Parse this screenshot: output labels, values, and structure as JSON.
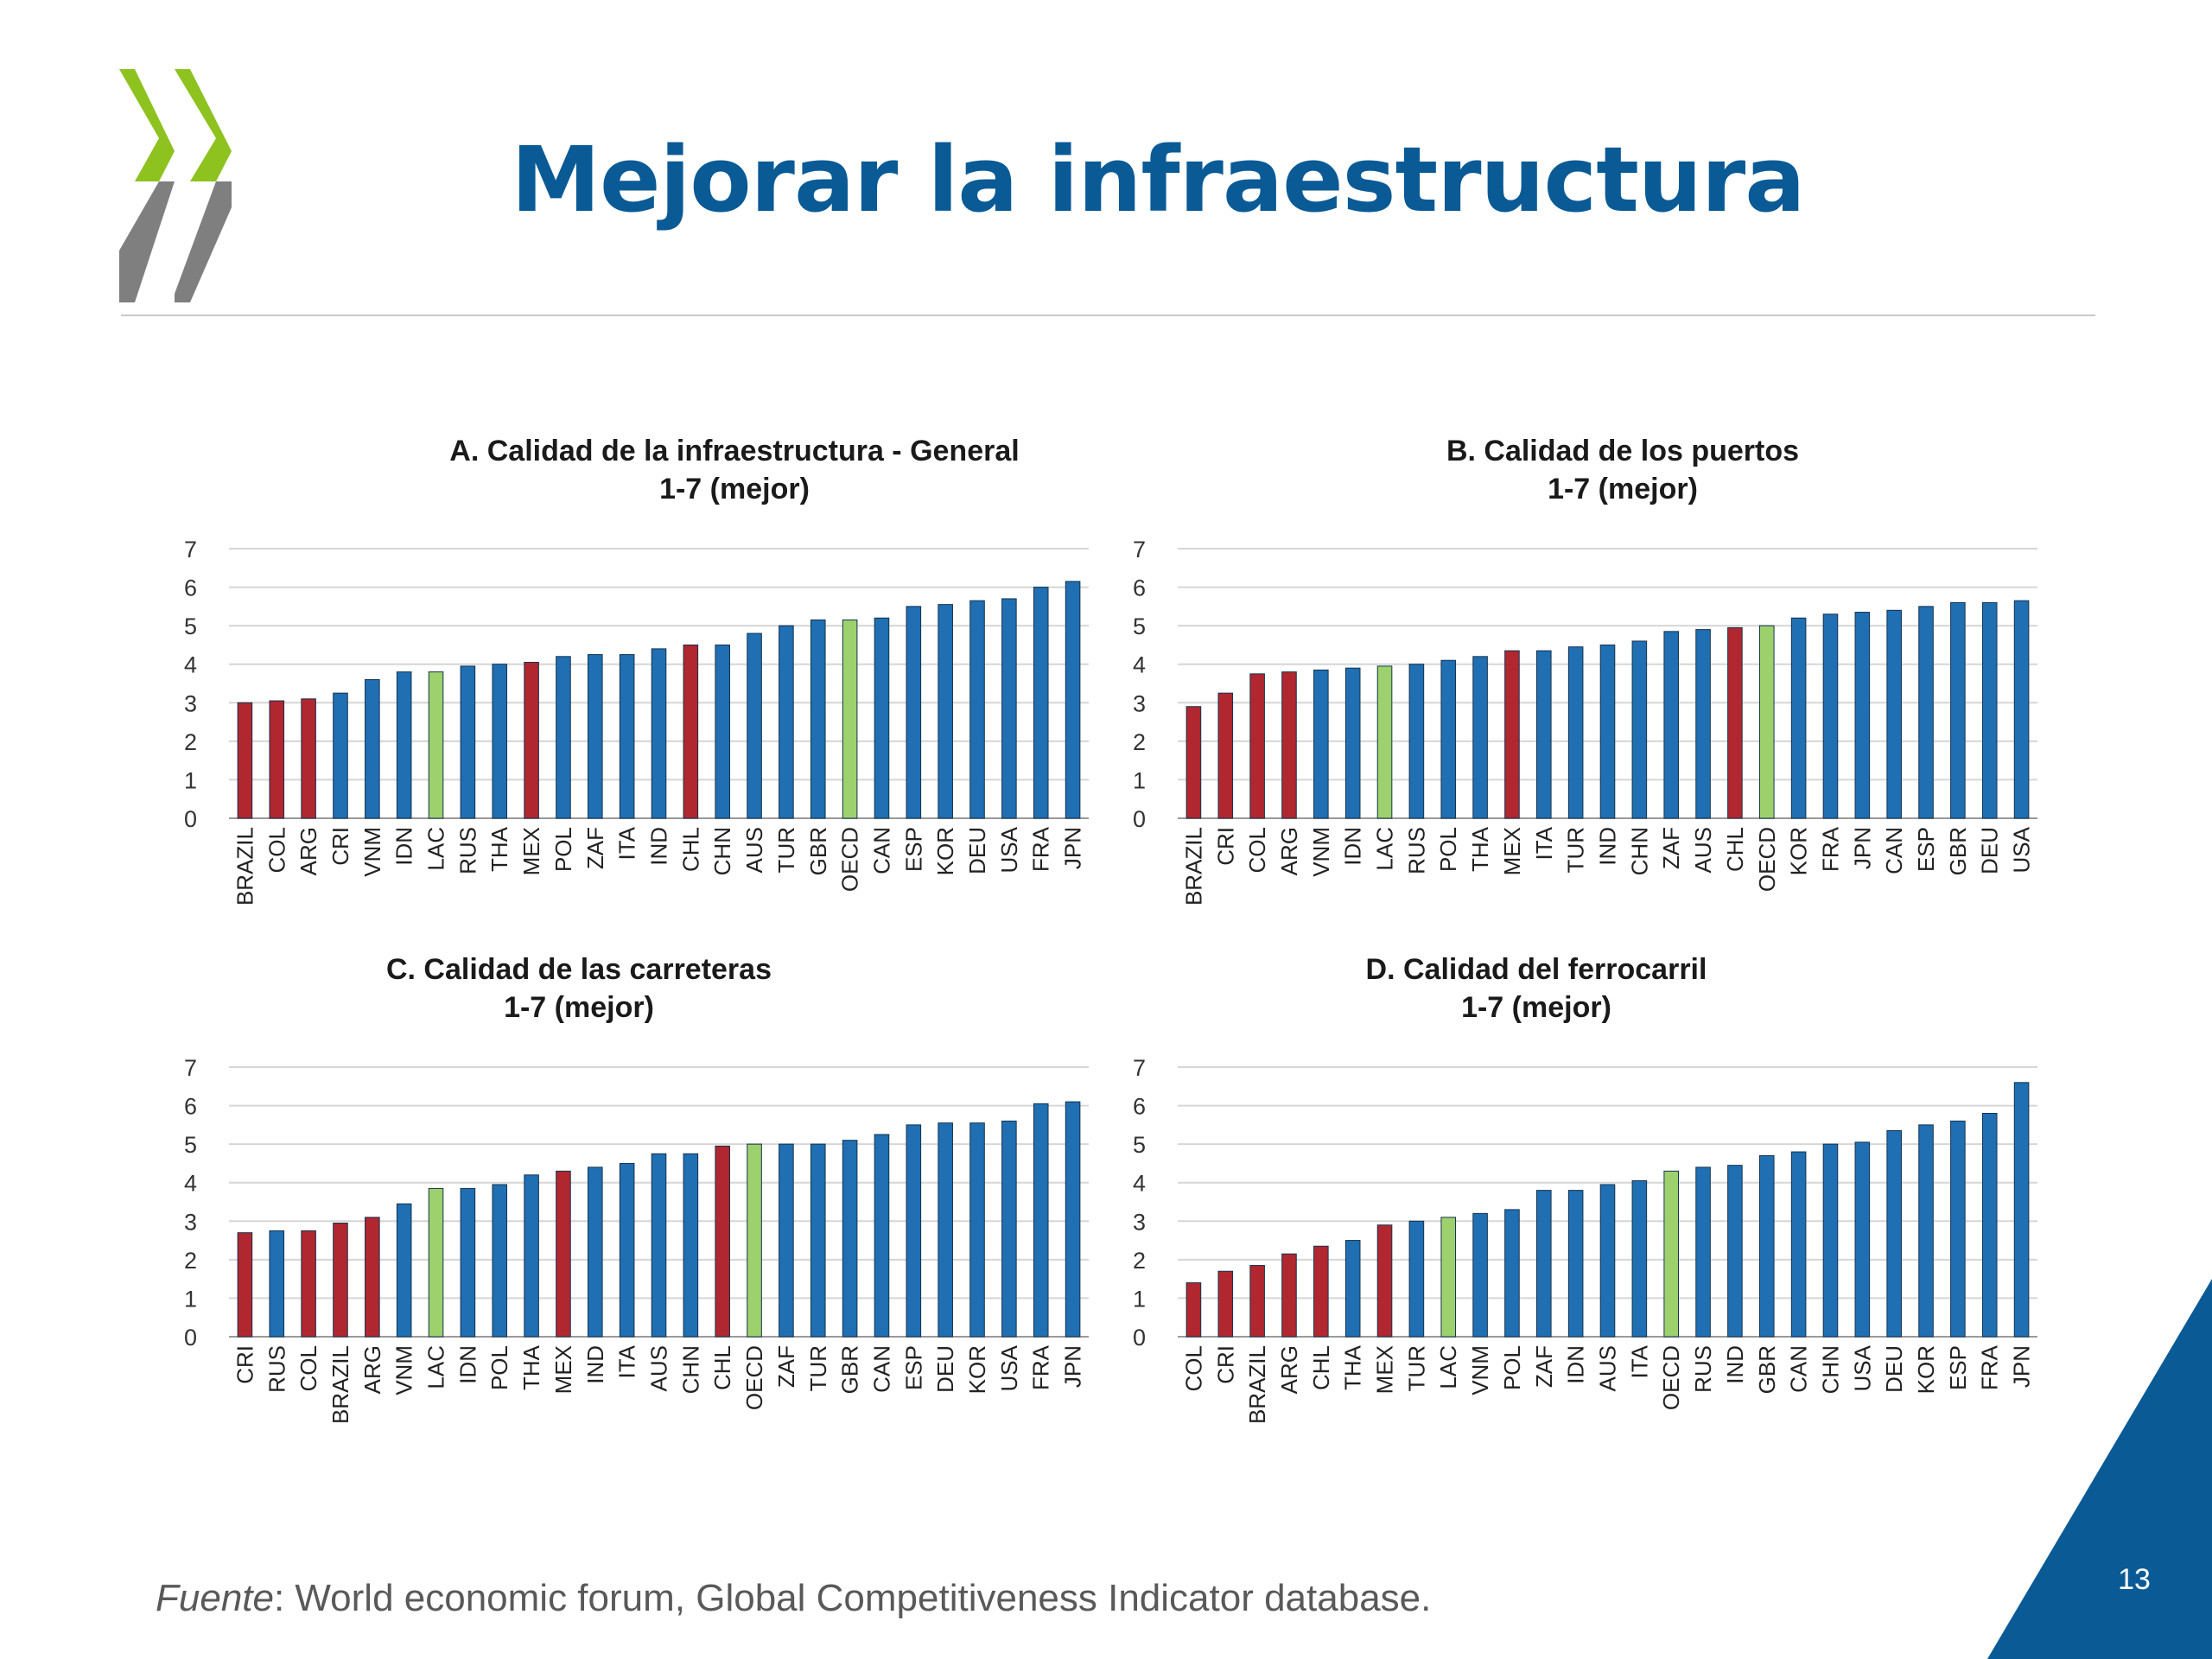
{
  "slide": {
    "title": "Mejorar la infraestructura",
    "source_label": "Fuente",
    "source_text": ": World economic forum, Global Competitiveness Indicator database.",
    "page_number": "13",
    "logo_icon": "oecd-chevron-logo-icon"
  },
  "colors": {
    "title": "#0a5a96",
    "bar_default": "#1f6fb2",
    "bar_latam": "#b0272f",
    "bar_lac_oecd": "#9dd16e",
    "logo_green": "#8dc21f",
    "logo_gray": "#7f7f7f",
    "corner": "#0a5a96"
  },
  "chart_data": [
    {
      "type": "bar",
      "title": "A. Calidad de la infraestructura  - General",
      "subtitle": "1-7 (mejor)",
      "ylim": [
        0,
        7
      ],
      "yticks": [
        0,
        1,
        2,
        3,
        4,
        5,
        6,
        7
      ],
      "grid": true,
      "categories": [
        "BRAZIL",
        "COL",
        "ARG",
        "CRI",
        "VNM",
        "IDN",
        "LAC",
        "RUS",
        "THA",
        "MEX",
        "POL",
        "ZAF",
        "ITA",
        "IND",
        "CHL",
        "CHN",
        "AUS",
        "TUR",
        "GBR",
        "OECD",
        "CAN",
        "ESP",
        "KOR",
        "DEU",
        "USA",
        "FRA",
        "JPN"
      ],
      "values": [
        3.0,
        3.05,
        3.1,
        3.25,
        3.6,
        3.8,
        3.8,
        3.95,
        4.0,
        4.05,
        4.2,
        4.25,
        4.25,
        4.4,
        4.5,
        4.5,
        4.8,
        5.0,
        5.15,
        5.15,
        5.2,
        5.5,
        5.55,
        5.65,
        5.7,
        6.0,
        6.15
      ],
      "highlight": {
        "red": [
          "BRAZIL",
          "COL",
          "ARG",
          "MEX",
          "CHL"
        ],
        "green": [
          "LAC",
          "OECD"
        ]
      }
    },
    {
      "type": "bar",
      "title": "B. Calidad de los puertos",
      "subtitle": "1-7 (mejor)",
      "ylim": [
        0,
        7
      ],
      "yticks": [
        0,
        1,
        2,
        3,
        4,
        5,
        6,
        7
      ],
      "grid": true,
      "categories": [
        "BRAZIL",
        "CRI",
        "COL",
        "ARG",
        "VNM",
        "IDN",
        "LAC",
        "RUS",
        "POL",
        "THA",
        "MEX",
        "ITA",
        "TUR",
        "IND",
        "CHN",
        "ZAF",
        "AUS",
        "CHL",
        "OECD",
        "KOR",
        "FRA",
        "JPN",
        "CAN",
        "ESP",
        "GBR",
        "DEU",
        "USA"
      ],
      "values": [
        2.9,
        3.25,
        3.75,
        3.8,
        3.85,
        3.9,
        3.95,
        4.0,
        4.1,
        4.2,
        4.35,
        4.35,
        4.45,
        4.5,
        4.6,
        4.85,
        4.9,
        4.95,
        5.0,
        5.2,
        5.3,
        5.35,
        5.4,
        5.5,
        5.6,
        5.6,
        5.65
      ],
      "highlight": {
        "red": [
          "BRAZIL",
          "CRI",
          "COL",
          "ARG",
          "MEX",
          "CHL"
        ],
        "green": [
          "LAC",
          "OECD"
        ]
      }
    },
    {
      "type": "bar",
      "title": "C. Calidad de las carreteras",
      "subtitle": "1-7 (mejor)",
      "ylim": [
        0,
        7
      ],
      "yticks": [
        0,
        1,
        2,
        3,
        4,
        5,
        6,
        7
      ],
      "grid": true,
      "categories": [
        "CRI",
        "RUS",
        "COL",
        "BRAZIL",
        "ARG",
        "VNM",
        "LAC",
        "IDN",
        "POL",
        "THA",
        "MEX",
        "IND",
        "ITA",
        "AUS",
        "CHN",
        "CHL",
        "OECD",
        "ZAF",
        "TUR",
        "GBR",
        "CAN",
        "ESP",
        "DEU",
        "KOR",
        "USA",
        "FRA",
        "JPN"
      ],
      "values": [
        2.7,
        2.75,
        2.75,
        2.95,
        3.1,
        3.45,
        3.85,
        3.85,
        3.95,
        4.2,
        4.3,
        4.4,
        4.5,
        4.75,
        4.75,
        4.95,
        5.0,
        5.0,
        5.0,
        5.1,
        5.25,
        5.5,
        5.55,
        5.55,
        5.6,
        6.05,
        6.1
      ],
      "highlight": {
        "red": [
          "CRI",
          "COL",
          "BRAZIL",
          "ARG",
          "MEX",
          "CHL"
        ],
        "green": [
          "LAC",
          "OECD"
        ]
      }
    },
    {
      "type": "bar",
      "title": "D. Calidad del ferrocarril",
      "subtitle": "1-7 (mejor)",
      "ylim": [
        0,
        7
      ],
      "yticks": [
        0,
        1,
        2,
        3,
        4,
        5,
        6,
        7
      ],
      "grid": true,
      "categories": [
        "COL",
        "CRI",
        "BRAZIL",
        "ARG",
        "CHL",
        "THA",
        "MEX",
        "TUR",
        "LAC",
        "VNM",
        "POL",
        "ZAF",
        "IDN",
        "AUS",
        "ITA",
        "OECD",
        "RUS",
        "IND",
        "GBR",
        "CAN",
        "CHN",
        "USA",
        "DEU",
        "KOR",
        "ESP",
        "FRA",
        "JPN"
      ],
      "values": [
        1.4,
        1.7,
        1.85,
        2.15,
        2.35,
        2.5,
        2.9,
        3.0,
        3.1,
        3.2,
        3.3,
        3.8,
        3.8,
        3.95,
        4.05,
        4.3,
        4.4,
        4.45,
        4.7,
        4.8,
        5.0,
        5.05,
        5.35,
        5.5,
        5.6,
        5.8,
        6.6
      ],
      "highlight": {
        "red": [
          "COL",
          "CRI",
          "BRAZIL",
          "ARG",
          "CHL",
          "MEX"
        ],
        "green": [
          "LAC",
          "OECD"
        ]
      }
    }
  ]
}
